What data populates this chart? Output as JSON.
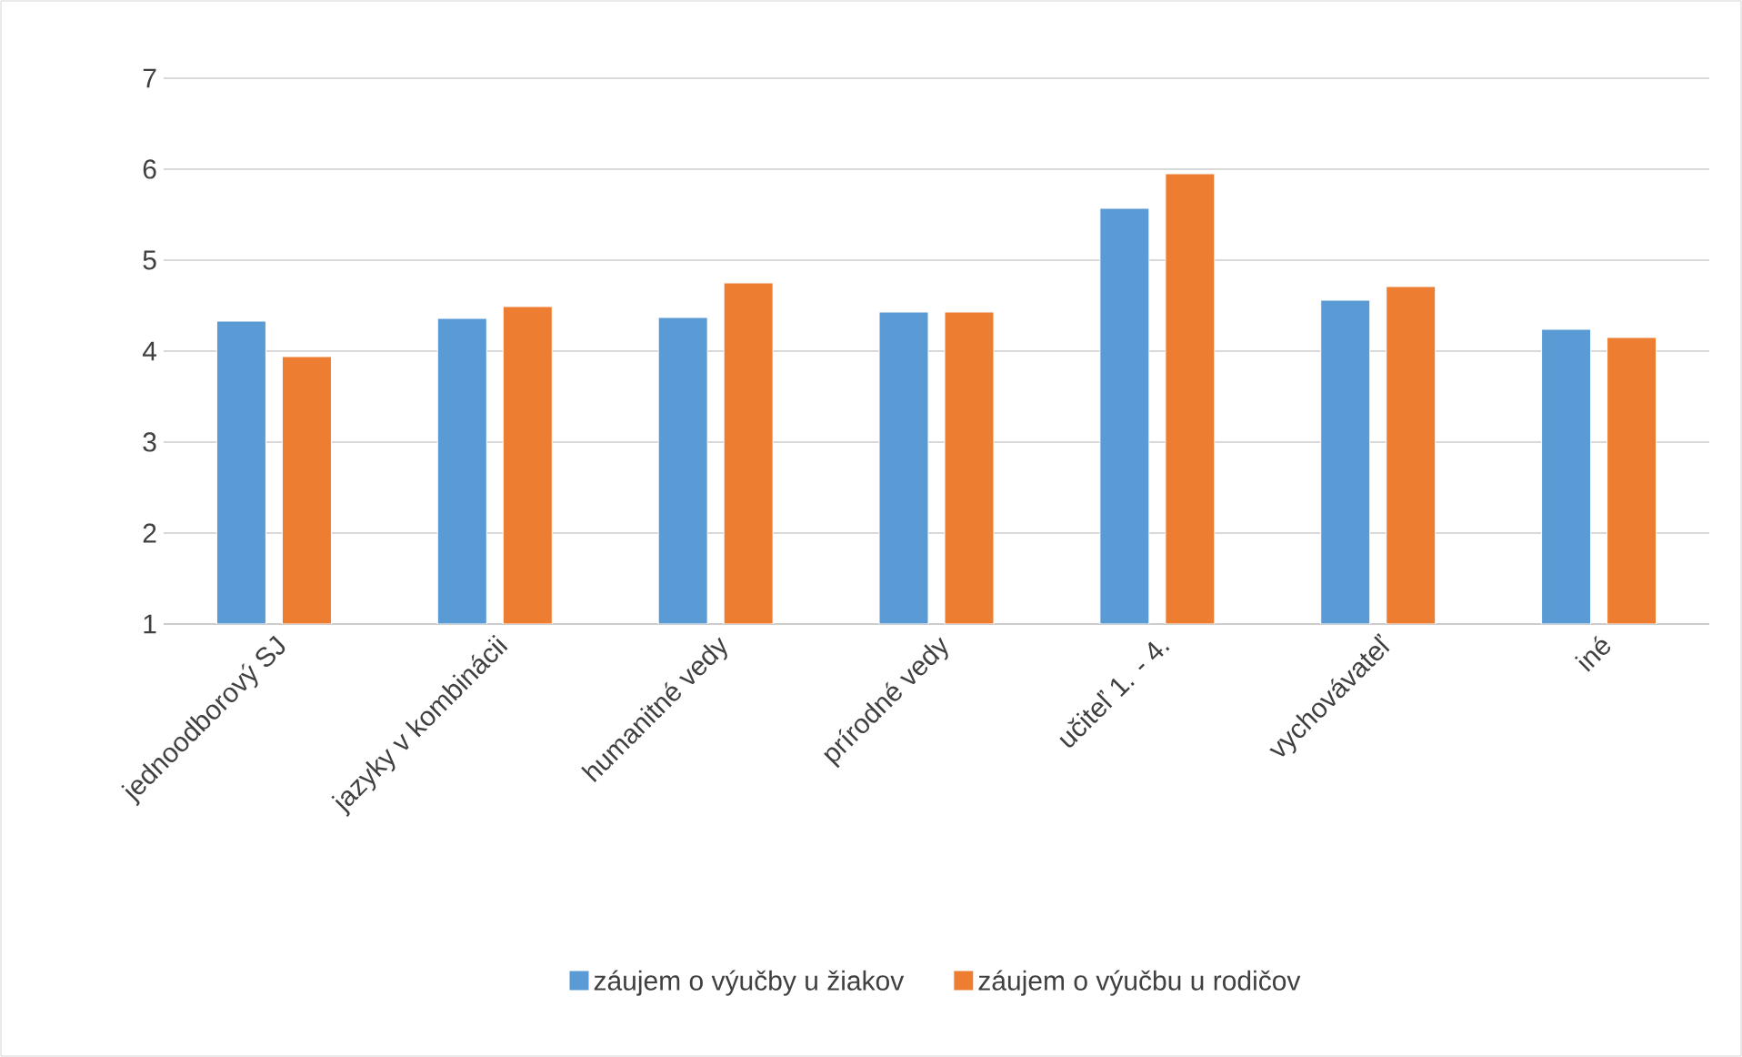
{
  "chart_data": {
    "type": "bar",
    "categories": [
      "jednoodborový SJ",
      "jazyky v kombinácii",
      "humanitné vedy",
      "prírodné vedy",
      "učiteľ 1. - 4.",
      "vychovávateľ",
      "iné"
    ],
    "series": [
      {
        "name": "záujem o výučby u žiakov",
        "color": "#5b9bd5",
        "values": [
          4.33,
          4.36,
          4.37,
          4.43,
          5.57,
          4.56,
          4.24
        ]
      },
      {
        "name": "záujem o výučbu u rodičov",
        "color": "#ed7d31",
        "values": [
          3.94,
          4.49,
          4.75,
          4.43,
          5.95,
          4.71,
          4.15
        ]
      }
    ],
    "ylim": [
      1,
      7
    ],
    "yticks": [
      1,
      2,
      3,
      4,
      5,
      6,
      7
    ],
    "grid": "y",
    "legend": "bottom"
  }
}
